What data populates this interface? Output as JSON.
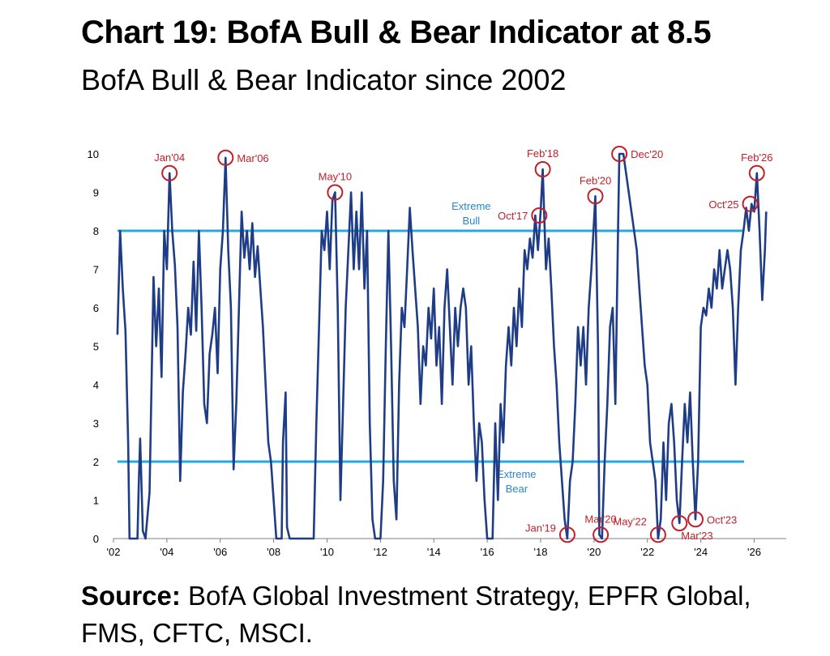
{
  "title": "Chart 19: BofA Bull & Bear Indicator at 8.5",
  "subtitle": "BofA Bull & Bear Indicator since 2002",
  "source_label": "Source:",
  "source_text": "BofA Global Investment Strategy, EPFR Global, FMS, CFTC, MSCI.",
  "colors": {
    "series": "#1f3d87",
    "threshold": "#29a8e0",
    "annotation": "#c0202a",
    "band_label": "#2a86c8"
  },
  "chart_data": {
    "type": "line",
    "title": "",
    "xlabel": "",
    "ylabel": "",
    "xlim": [
      2002,
      2027.2
    ],
    "ylim": [
      0,
      10
    ],
    "x_ticks": [
      {
        "x": 2002,
        "label": "'02"
      },
      {
        "x": 2004,
        "label": "'04"
      },
      {
        "x": 2006,
        "label": "'06"
      },
      {
        "x": 2008,
        "label": "'08"
      },
      {
        "x": 2010,
        "label": "'10"
      },
      {
        "x": 2012,
        "label": "'12"
      },
      {
        "x": 2014,
        "label": "'14"
      },
      {
        "x": 2016,
        "label": "'16"
      },
      {
        "x": 2018,
        "label": "'18"
      },
      {
        "x": 2020,
        "label": "'20"
      },
      {
        "x": 2022,
        "label": "'22"
      },
      {
        "x": 2024,
        "label": "'24"
      },
      {
        "x": 2026,
        "label": "'26"
      }
    ],
    "y_ticks": [
      0,
      1,
      2,
      3,
      4,
      5,
      6,
      7,
      8,
      9,
      10
    ],
    "grid": false,
    "thresholds": [
      {
        "y": 8,
        "label_lines": [
          "Extreme",
          "Bull"
        ]
      },
      {
        "y": 2,
        "label_lines": [
          "Extreme",
          "Bear"
        ]
      }
    ],
    "series": [
      {
        "points": [
          [
            2002.15,
            5.3
          ],
          [
            2002.25,
            8.0
          ],
          [
            2002.35,
            6.5
          ],
          [
            2002.45,
            5.4
          ],
          [
            2002.55,
            2.5
          ],
          [
            2002.6,
            0
          ],
          [
            2002.9,
            0
          ],
          [
            2002.95,
            1.5
          ],
          [
            2003.0,
            2.6
          ],
          [
            2003.1,
            0.2
          ],
          [
            2003.2,
            0
          ],
          [
            2003.35,
            1.2
          ],
          [
            2003.5,
            6.8
          ],
          [
            2003.6,
            5.0
          ],
          [
            2003.7,
            6.5
          ],
          [
            2003.8,
            4.2
          ],
          [
            2003.9,
            8.0
          ],
          [
            2004.0,
            7.0
          ],
          [
            2004.1,
            9.5
          ],
          [
            2004.2,
            8.0
          ],
          [
            2004.3,
            7.1
          ],
          [
            2004.4,
            5.5
          ],
          [
            2004.5,
            1.5
          ],
          [
            2004.6,
            3.8
          ],
          [
            2004.7,
            4.8
          ],
          [
            2004.8,
            6.0
          ],
          [
            2004.9,
            5.3
          ],
          [
            2005.0,
            7.2
          ],
          [
            2005.1,
            5.4
          ],
          [
            2005.2,
            8.0
          ],
          [
            2005.3,
            6.0
          ],
          [
            2005.4,
            3.5
          ],
          [
            2005.5,
            3.0
          ],
          [
            2005.6,
            4.8
          ],
          [
            2005.7,
            5.3
          ],
          [
            2005.8,
            6.0
          ],
          [
            2005.9,
            4.3
          ],
          [
            2006.0,
            7.0
          ],
          [
            2006.1,
            8.0
          ],
          [
            2006.2,
            9.9
          ],
          [
            2006.3,
            7.5
          ],
          [
            2006.4,
            6.0
          ],
          [
            2006.5,
            1.8
          ],
          [
            2006.6,
            3.5
          ],
          [
            2006.7,
            6.0
          ],
          [
            2006.8,
            8.5
          ],
          [
            2006.9,
            7.3
          ],
          [
            2007.0,
            8.0
          ],
          [
            2007.1,
            7.0
          ],
          [
            2007.2,
            8.2
          ],
          [
            2007.3,
            6.8
          ],
          [
            2007.4,
            7.6
          ],
          [
            2007.5,
            6.5
          ],
          [
            2007.6,
            5.5
          ],
          [
            2007.7,
            4.0
          ],
          [
            2007.8,
            2.5
          ],
          [
            2007.9,
            2.0
          ],
          [
            2008.0,
            1.0
          ],
          [
            2008.1,
            0
          ],
          [
            2008.3,
            0
          ],
          [
            2008.35,
            2.5
          ],
          [
            2008.45,
            3.8
          ],
          [
            2008.5,
            0.3
          ],
          [
            2008.6,
            0
          ],
          [
            2009.5,
            0
          ],
          [
            2009.6,
            3.0
          ],
          [
            2009.7,
            5.5
          ],
          [
            2009.8,
            8.0
          ],
          [
            2009.9,
            7.5
          ],
          [
            2010.0,
            8.5
          ],
          [
            2010.1,
            7.0
          ],
          [
            2010.2,
            8.8
          ],
          [
            2010.3,
            9.0
          ],
          [
            2010.4,
            6.0
          ],
          [
            2010.5,
            1.0
          ],
          [
            2010.6,
            3.5
          ],
          [
            2010.7,
            6.0
          ],
          [
            2010.8,
            7.5
          ],
          [
            2010.9,
            9.0
          ],
          [
            2011.0,
            7.0
          ],
          [
            2011.1,
            8.5
          ],
          [
            2011.2,
            7.0
          ],
          [
            2011.3,
            9.0
          ],
          [
            2011.4,
            6.5
          ],
          [
            2011.5,
            8.0
          ],
          [
            2011.6,
            3.0
          ],
          [
            2011.7,
            0.5
          ],
          [
            2011.8,
            0
          ],
          [
            2012.0,
            0
          ],
          [
            2012.1,
            1.5
          ],
          [
            2012.2,
            5.0
          ],
          [
            2012.3,
            8.0
          ],
          [
            2012.4,
            5.0
          ],
          [
            2012.5,
            1.5
          ],
          [
            2012.6,
            0.5
          ],
          [
            2012.7,
            4.0
          ],
          [
            2012.8,
            6.0
          ],
          [
            2012.9,
            5.5
          ],
          [
            2013.0,
            7.0
          ],
          [
            2013.1,
            8.6
          ],
          [
            2013.2,
            7.5
          ],
          [
            2013.3,
            6.5
          ],
          [
            2013.4,
            5.5
          ],
          [
            2013.5,
            3.5
          ],
          [
            2013.6,
            5.0
          ],
          [
            2013.7,
            4.5
          ],
          [
            2013.8,
            6.0
          ],
          [
            2013.9,
            5.2
          ],
          [
            2014.0,
            6.5
          ],
          [
            2014.1,
            4.5
          ],
          [
            2014.2,
            5.5
          ],
          [
            2014.3,
            3.5
          ],
          [
            2014.4,
            6.0
          ],
          [
            2014.5,
            7.0
          ],
          [
            2014.6,
            5.5
          ],
          [
            2014.7,
            4.0
          ],
          [
            2014.8,
            6.0
          ],
          [
            2014.9,
            5.0
          ],
          [
            2015.0,
            6.0
          ],
          [
            2015.1,
            6.5
          ],
          [
            2015.2,
            6.0
          ],
          [
            2015.3,
            4.0
          ],
          [
            2015.4,
            5.0
          ],
          [
            2015.5,
            3.0
          ],
          [
            2015.6,
            1.5
          ],
          [
            2015.7,
            3.0
          ],
          [
            2015.8,
            2.5
          ],
          [
            2015.9,
            1.0
          ],
          [
            2016.0,
            0
          ],
          [
            2016.2,
            0
          ],
          [
            2016.3,
            3.0
          ],
          [
            2016.4,
            1.0
          ],
          [
            2016.5,
            3.5
          ],
          [
            2016.6,
            2.5
          ],
          [
            2016.7,
            4.5
          ],
          [
            2016.8,
            5.5
          ],
          [
            2016.9,
            4.5
          ],
          [
            2017.0,
            6.0
          ],
          [
            2017.1,
            5.0
          ],
          [
            2017.2,
            6.5
          ],
          [
            2017.3,
            5.5
          ],
          [
            2017.4,
            7.5
          ],
          [
            2017.5,
            7.0
          ],
          [
            2017.6,
            7.8
          ],
          [
            2017.7,
            7.3
          ],
          [
            2017.8,
            8.4
          ],
          [
            2017.9,
            7.5
          ],
          [
            2018.0,
            8.5
          ],
          [
            2018.08,
            9.6
          ],
          [
            2018.2,
            7.0
          ],
          [
            2018.3,
            7.8
          ],
          [
            2018.4,
            6.5
          ],
          [
            2018.5,
            5.0
          ],
          [
            2018.6,
            4.0
          ],
          [
            2018.7,
            2.5
          ],
          [
            2018.8,
            1.5
          ],
          [
            2018.9,
            0.5
          ],
          [
            2019.0,
            0
          ],
          [
            2019.1,
            1.5
          ],
          [
            2019.2,
            2.0
          ],
          [
            2019.3,
            3.5
          ],
          [
            2019.4,
            5.5
          ],
          [
            2019.5,
            4.5
          ],
          [
            2019.6,
            5.5
          ],
          [
            2019.7,
            4.0
          ],
          [
            2019.8,
            6.0
          ],
          [
            2019.9,
            7.0
          ],
          [
            2020.05,
            8.9
          ],
          [
            2020.15,
            5.0
          ],
          [
            2020.2,
            0.1
          ],
          [
            2020.3,
            0
          ],
          [
            2020.4,
            2.0
          ],
          [
            2020.5,
            3.5
          ],
          [
            2020.6,
            5.5
          ],
          [
            2020.7,
            6.0
          ],
          [
            2020.8,
            3.5
          ],
          [
            2020.9,
            8.0
          ],
          [
            2020.95,
            10.0
          ],
          [
            2021.1,
            10.0
          ],
          [
            2021.2,
            9.5
          ],
          [
            2021.3,
            9.0
          ],
          [
            2021.4,
            8.5
          ],
          [
            2021.5,
            8.0
          ],
          [
            2021.6,
            7.5
          ],
          [
            2021.7,
            6.5
          ],
          [
            2021.8,
            5.5
          ],
          [
            2021.9,
            4.5
          ],
          [
            2022.0,
            4.0
          ],
          [
            2022.1,
            2.5
          ],
          [
            2022.2,
            2.0
          ],
          [
            2022.3,
            1.5
          ],
          [
            2022.4,
            0
          ],
          [
            2022.5,
            0.5
          ],
          [
            2022.6,
            2.5
          ],
          [
            2022.7,
            1.0
          ],
          [
            2022.8,
            3.0
          ],
          [
            2022.9,
            3.5
          ],
          [
            2023.0,
            2.5
          ],
          [
            2023.1,
            1.0
          ],
          [
            2023.2,
            0.4
          ],
          [
            2023.3,
            2.0
          ],
          [
            2023.4,
            3.5
          ],
          [
            2023.5,
            2.5
          ],
          [
            2023.6,
            3.8
          ],
          [
            2023.7,
            2.0
          ],
          [
            2023.8,
            0.5
          ],
          [
            2023.9,
            2.0
          ],
          [
            2024.0,
            5.5
          ],
          [
            2024.1,
            6.0
          ],
          [
            2024.2,
            5.8
          ],
          [
            2024.3,
            6.5
          ],
          [
            2024.4,
            6.0
          ],
          [
            2024.5,
            7.0
          ],
          [
            2024.6,
            6.5
          ],
          [
            2024.7,
            7.5
          ],
          [
            2024.8,
            6.5
          ],
          [
            2024.9,
            7.0
          ],
          [
            2025.0,
            7.5
          ],
          [
            2025.1,
            7.0
          ],
          [
            2025.2,
            6.0
          ],
          [
            2025.3,
            4.0
          ],
          [
            2025.4,
            6.0
          ],
          [
            2025.5,
            7.5
          ],
          [
            2025.6,
            8.0
          ],
          [
            2025.7,
            8.6
          ],
          [
            2025.8,
            8.0
          ],
          [
            2025.9,
            8.7
          ],
          [
            2026.0,
            8.5
          ],
          [
            2026.1,
            9.5
          ],
          [
            2026.2,
            8.0
          ],
          [
            2026.3,
            6.2
          ],
          [
            2026.4,
            7.5
          ],
          [
            2026.45,
            8.5
          ]
        ]
      }
    ],
    "annotations": [
      {
        "label": "Jan'04",
        "x": 2004.1,
        "y": 9.5,
        "label_pos": "above"
      },
      {
        "label": "Mar'06",
        "x": 2006.2,
        "y": 9.9,
        "label_pos": "right"
      },
      {
        "label": "May'10",
        "x": 2010.3,
        "y": 9.0,
        "label_pos": "above"
      },
      {
        "label": "Oct'17",
        "x": 2017.95,
        "y": 8.4,
        "label_pos": "left"
      },
      {
        "label": "Feb'18",
        "x": 2018.08,
        "y": 9.6,
        "label_pos": "above"
      },
      {
        "label": "Jan'19",
        "x": 2019.0,
        "y": 0.1,
        "label_pos": "left"
      },
      {
        "label": "Feb'20",
        "x": 2020.05,
        "y": 8.9,
        "label_pos": "above"
      },
      {
        "label": "Mar'20",
        "x": 2020.25,
        "y": 0.1,
        "label_pos": "above"
      },
      {
        "label": "Dec'20",
        "x": 2020.95,
        "y": 10.0,
        "label_pos": "right"
      },
      {
        "label": "May'22",
        "x": 2022.4,
        "y": 0.1,
        "label_pos": "aboveleft"
      },
      {
        "label": "Mar'23",
        "x": 2023.2,
        "y": 0.4,
        "label_pos": "belowright"
      },
      {
        "label": "Oct'23",
        "x": 2023.8,
        "y": 0.5,
        "label_pos": "right"
      },
      {
        "label": "Oct'25",
        "x": 2025.85,
        "y": 8.7,
        "label_pos": "left"
      },
      {
        "label": "Feb'26",
        "x": 2026.1,
        "y": 9.5,
        "label_pos": "above"
      }
    ]
  }
}
